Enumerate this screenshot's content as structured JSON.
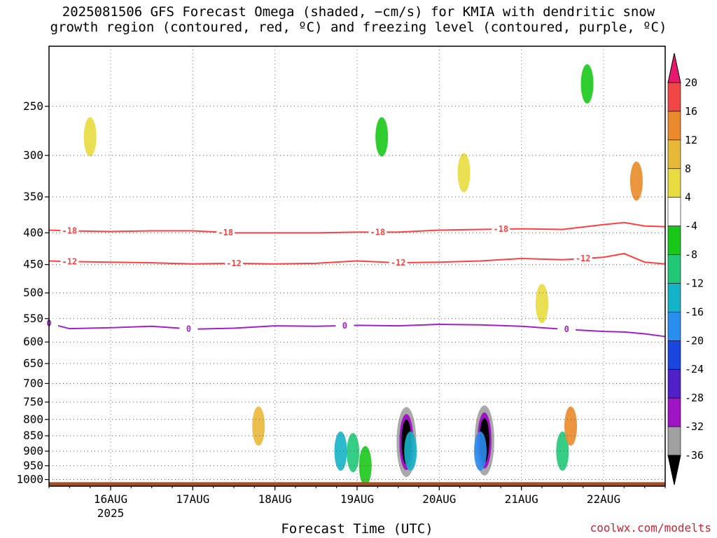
{
  "chart_data": {
    "type": "heatmap",
    "title_line1": "2025081506 GFS Forecast Omega (shaded, −cm/s) for KMIA with dendritic snow",
    "title_line2": "growth region (contoured, red, ºC) and freezing level (contoured, purple, ºC)",
    "xlabel": "Forecast Time (UTC)",
    "credit": "coolwx.com/modelts",
    "x_ticks": [
      {
        "day": "15.5",
        "label": "16AUG"
      },
      {
        "day": "16.5",
        "label": "17AUG"
      },
      {
        "day": "17.5",
        "label": "18AUG"
      },
      {
        "day": "18.5",
        "label": "19AUG"
      },
      {
        "day": "19.5",
        "label": "20AUG"
      },
      {
        "day": "20.5",
        "label": "21AUG"
      },
      {
        "day": "21.5",
        "label": "22AUG"
      }
    ],
    "x_year_label": "2025",
    "x_range_days": [
      14.75,
      22.25
    ],
    "y_ticks": [
      250,
      300,
      350,
      400,
      450,
      500,
      550,
      600,
      650,
      700,
      750,
      800,
      850,
      900,
      950,
      1000
    ],
    "y_range_hpa": [
      200,
      1025
    ],
    "y_scale": "log-pressure",
    "grid": true,
    "colorbar": {
      "labels": [
        "20",
        "16",
        "12",
        "8",
        "4",
        "-4",
        "-8",
        "-12",
        "-16",
        "-20",
        "-24",
        "-28",
        "-32",
        "-36"
      ],
      "colors": [
        "#e8186e",
        "#f04646",
        "#ea8a2a",
        "#e8b838",
        "#e8dc40",
        "#ffffff",
        "#18c818",
        "#20c878",
        "#14b4c8",
        "#2a8ef0",
        "#1a46e0",
        "#5020c8",
        "#a014c8",
        "#a0a0a0",
        "#000000"
      ]
    },
    "contours": [
      {
        "name": "-18",
        "color": "#ff4040",
        "label_days": [
          15.0,
          16.9,
          18.75,
          20.25
        ],
        "pressure_days": [
          14.75,
          15.0,
          15.5,
          16.0,
          16.5,
          17.0,
          17.5,
          18.0,
          18.5,
          19.0,
          19.5,
          20.0,
          20.5,
          21.0,
          21.5,
          21.75,
          22.0,
          22.25
        ],
        "pressure": [
          396,
          397,
          398,
          397,
          397,
          400,
          400,
          400,
          399,
          399,
          396,
          395,
          394,
          395,
          388,
          385,
          390,
          391
        ]
      },
      {
        "name": "-12",
        "color": "#ff4040",
        "label_days": [
          15.0,
          17.0,
          19.0,
          21.25
        ],
        "pressure": [
          444,
          445,
          446,
          447,
          449,
          448,
          449,
          448,
          444,
          447,
          446,
          444,
          440,
          442,
          438,
          432,
          446,
          449
        ]
      },
      {
        "name": "0",
        "color": "#a020c8",
        "label_days": [
          14.75,
          16.45,
          18.35,
          21.05
        ],
        "pressure": [
          560,
          571,
          569,
          566,
          572,
          570,
          565,
          566,
          564,
          565,
          562,
          563,
          566,
          572,
          577,
          578,
          582,
          588
        ]
      }
    ],
    "omega_cells": [
      {
        "t": 19.1,
        "p": 870,
        "v": -34
      },
      {
        "t": 20.05,
        "p": 865,
        "v": -36
      },
      {
        "t": 18.3,
        "p": 900,
        "v": -14
      },
      {
        "t": 18.45,
        "p": 905,
        "v": -12
      },
      {
        "t": 18.6,
        "p": 950,
        "v": -8
      },
      {
        "t": 19.15,
        "p": 900,
        "v": -16
      },
      {
        "t": 20.0,
        "p": 900,
        "v": -20
      },
      {
        "t": 21.0,
        "p": 900,
        "v": -12
      },
      {
        "t": 21.1,
        "p": 820,
        "v": 12
      },
      {
        "t": 17.3,
        "p": 820,
        "v": 10
      },
      {
        "t": 15.25,
        "p": 280,
        "v": 6
      },
      {
        "t": 19.8,
        "p": 320,
        "v": 6
      },
      {
        "t": 21.9,
        "p": 330,
        "v": 12
      },
      {
        "t": 20.75,
        "p": 520,
        "v": 6
      },
      {
        "t": 18.8,
        "p": 280,
        "v": -8
      },
      {
        "t": 21.3,
        "p": 230,
        "v": -8
      }
    ]
  }
}
